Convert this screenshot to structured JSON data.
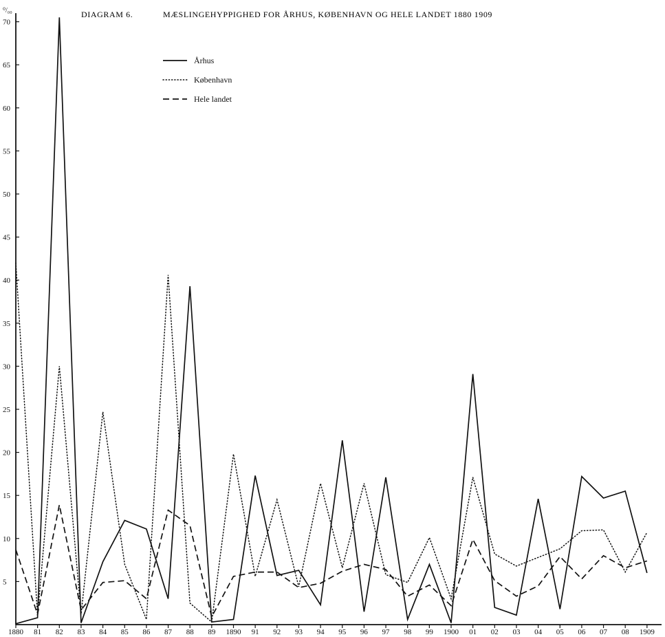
{
  "chart_data": {
    "type": "line",
    "diagram_label": "DIAGRAM 6.",
    "title": "MÆSLINGEHYPPIGHED FOR ÅRHUS, KØBENHAVN OG HELE LANDET 1880 1909",
    "unit_label": "⁰/₀₀",
    "xlabel": "",
    "ylabel": "",
    "ylim": [
      0,
      71
    ],
    "yticks": [
      5,
      10,
      15,
      20,
      25,
      30,
      35,
      40,
      45,
      50,
      55,
      60,
      65,
      70
    ],
    "grid": false,
    "legend_position": "top-left",
    "categories": [
      "1880",
      "81",
      "82",
      "83",
      "84",
      "85",
      "86",
      "87",
      "88",
      "89",
      "1890",
      "91",
      "92",
      "93",
      "94",
      "95",
      "96",
      "97",
      "98",
      "99",
      "1900",
      "01",
      "02",
      "03",
      "04",
      "05",
      "06",
      "07",
      "08",
      "1909"
    ],
    "series": [
      {
        "name": "Århus",
        "style": "solid",
        "values": [
          0.1,
          0.8,
          70.5,
          0.2,
          7.3,
          12.1,
          11.1,
          3.0,
          39.3,
          0.3,
          0.6,
          17.3,
          5.7,
          6.3,
          2.3,
          21.4,
          1.5,
          17.1,
          0.6,
          7.0,
          0.2,
          29.1,
          2.0,
          1.1,
          14.6,
          1.8,
          17.2,
          14.7,
          15.5,
          6.0
        ]
      },
      {
        "name": "København",
        "style": "dotted",
        "values": [
          42.0,
          1.0,
          30.0,
          1.2,
          24.7,
          7.0,
          0.6,
          40.6,
          2.5,
          0.3,
          19.8,
          5.6,
          14.5,
          4.4,
          16.4,
          6.6,
          16.4,
          5.8,
          4.9,
          10.1,
          3.0,
          17.1,
          8.2,
          6.8,
          7.8,
          8.8,
          10.9,
          11.0,
          6.1,
          10.7
        ]
      },
      {
        "name": "Hele landet",
        "style": "dashed",
        "values": [
          8.7,
          1.2,
          13.9,
          1.7,
          4.9,
          5.1,
          3.0,
          13.3,
          11.5,
          0.9,
          5.6,
          6.1,
          6.1,
          4.3,
          4.8,
          6.2,
          7.0,
          6.4,
          3.3,
          4.6,
          2.2,
          9.9,
          5.1,
          3.3,
          4.5,
          7.9,
          5.3,
          8.0,
          6.6,
          7.4
        ]
      }
    ]
  },
  "colors": {
    "ink": "#111111",
    "background": "#ffffff"
  }
}
